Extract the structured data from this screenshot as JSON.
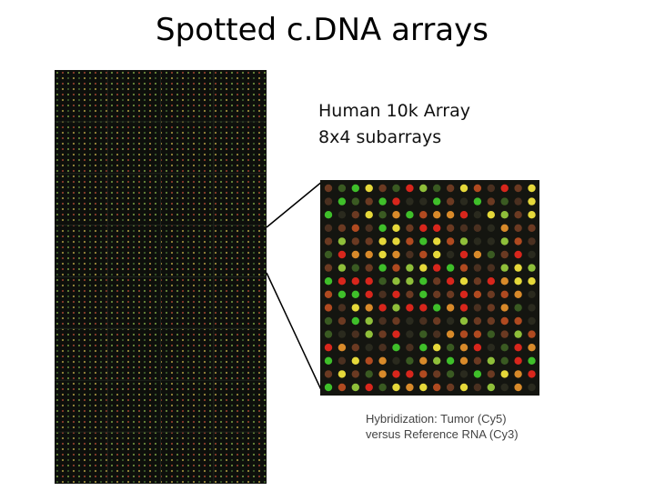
{
  "heading": {
    "title": "Spotted c.DNA arrays"
  },
  "annotation": {
    "lines": [
      "Human 10k Array",
      "8x4 subarrays"
    ]
  },
  "caption": {
    "lines": [
      "Hybridization: Tumor (Cy5)",
      "versus Reference RNA (Cy3)"
    ]
  }
}
